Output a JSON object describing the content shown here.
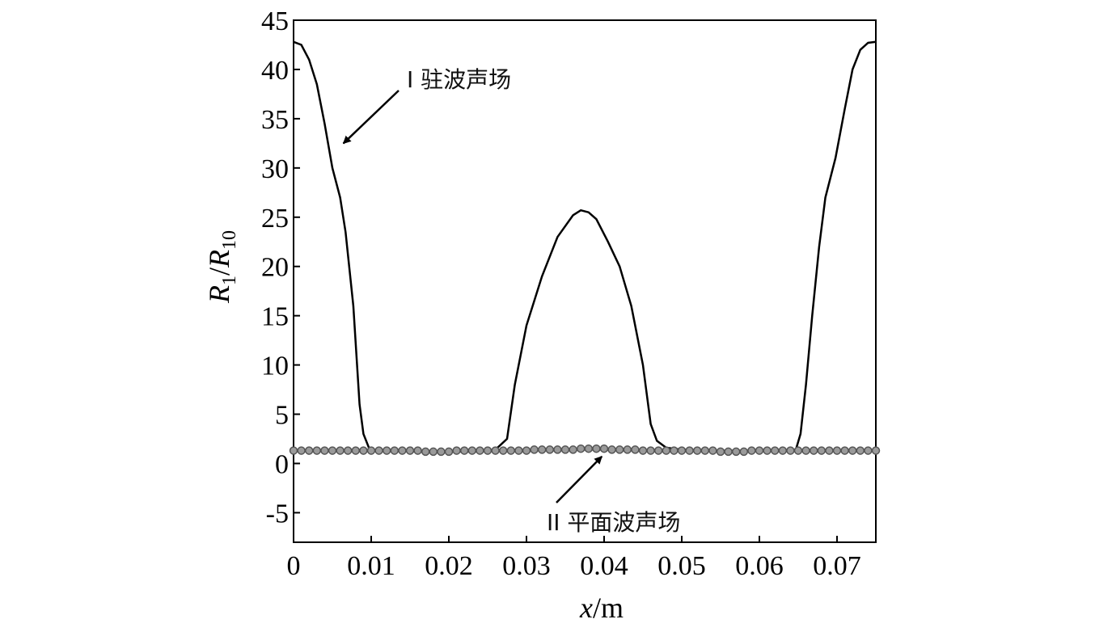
{
  "chart_data": {
    "type": "line",
    "xlabel": {
      "var": "x",
      "unit": "/m"
    },
    "ylabel": {
      "base": "R",
      "sub1": "1",
      "sep": "/",
      "base2": "R",
      "sub2": "10"
    },
    "xlim": [
      0,
      0.075
    ],
    "ylim": [
      -8,
      45
    ],
    "xticks": [
      0,
      0.01,
      0.02,
      0.03,
      0.04,
      0.05,
      0.06,
      0.07
    ],
    "xtick_labels": [
      "0",
      "0.01",
      "0.02",
      "0.03",
      "0.04",
      "0.05",
      "0.06",
      "0.07"
    ],
    "yticks": [
      -5,
      0,
      5,
      10,
      15,
      20,
      25,
      30,
      35,
      40,
      45
    ],
    "ytick_labels": [
      "-5",
      "0",
      "5",
      "10",
      "15",
      "20",
      "25",
      "30",
      "35",
      "40",
      "45"
    ],
    "grid": false,
    "colors": {
      "series1": "#000000",
      "series2": "#555555"
    },
    "series": [
      {
        "style": "solid-line",
        "x": [
          0,
          0.001,
          0.002,
          0.003,
          0.004,
          0.005,
          0.006,
          0.0067,
          0.0077,
          0.0085,
          0.009,
          0.0098,
          0.012,
          0.016,
          0.02,
          0.024,
          0.026,
          0.0275,
          0.0285,
          0.03,
          0.032,
          0.034,
          0.036,
          0.037,
          0.038,
          0.039,
          0.0405,
          0.042,
          0.0435,
          0.045,
          0.046,
          0.0468,
          0.048,
          0.05,
          0.054,
          0.058,
          0.0625,
          0.0647,
          0.0653,
          0.066,
          0.0668,
          0.0677,
          0.0685,
          0.0698,
          0.071,
          0.072,
          0.073,
          0.074,
          0.075
        ],
        "y": [
          42.8,
          42.5,
          41.0,
          38.5,
          34.5,
          30.0,
          27.0,
          23.5,
          16.0,
          6.0,
          3.0,
          1.4,
          1.3,
          1.2,
          1.2,
          1.2,
          1.4,
          2.5,
          8.0,
          14.0,
          19.0,
          23.0,
          25.2,
          25.7,
          25.5,
          24.8,
          22.5,
          20.0,
          16.0,
          10.0,
          4.0,
          2.3,
          1.6,
          1.4,
          1.3,
          1.3,
          1.3,
          1.4,
          3.0,
          8.0,
          15.0,
          22.0,
          27.0,
          31.0,
          36.0,
          40.0,
          42.0,
          42.7,
          42.8
        ]
      },
      {
        "style": "circle-markers",
        "x": [
          0,
          0.001,
          0.002,
          0.003,
          0.004,
          0.005,
          0.006,
          0.007,
          0.008,
          0.009,
          0.01,
          0.011,
          0.012,
          0.013,
          0.014,
          0.015,
          0.016,
          0.017,
          0.018,
          0.019,
          0.02,
          0.021,
          0.022,
          0.023,
          0.024,
          0.025,
          0.026,
          0.027,
          0.028,
          0.029,
          0.03,
          0.031,
          0.032,
          0.033,
          0.034,
          0.035,
          0.036,
          0.037,
          0.038,
          0.039,
          0.04,
          0.041,
          0.042,
          0.043,
          0.044,
          0.045,
          0.046,
          0.047,
          0.048,
          0.049,
          0.05,
          0.051,
          0.052,
          0.053,
          0.054,
          0.055,
          0.056,
          0.057,
          0.058,
          0.059,
          0.06,
          0.061,
          0.062,
          0.063,
          0.064,
          0.065,
          0.066,
          0.067,
          0.068,
          0.069,
          0.07,
          0.071,
          0.072,
          0.073,
          0.074,
          0.075
        ],
        "y": [
          1.3,
          1.3,
          1.3,
          1.3,
          1.3,
          1.3,
          1.3,
          1.3,
          1.3,
          1.3,
          1.3,
          1.3,
          1.3,
          1.3,
          1.3,
          1.3,
          1.3,
          1.2,
          1.2,
          1.2,
          1.2,
          1.3,
          1.3,
          1.3,
          1.3,
          1.3,
          1.3,
          1.3,
          1.3,
          1.3,
          1.3,
          1.4,
          1.4,
          1.4,
          1.4,
          1.4,
          1.4,
          1.5,
          1.5,
          1.5,
          1.5,
          1.4,
          1.4,
          1.4,
          1.4,
          1.3,
          1.3,
          1.3,
          1.3,
          1.3,
          1.3,
          1.3,
          1.3,
          1.3,
          1.3,
          1.2,
          1.2,
          1.2,
          1.2,
          1.3,
          1.3,
          1.3,
          1.3,
          1.3,
          1.3,
          1.3,
          1.3,
          1.3,
          1.3,
          1.3,
          1.3,
          1.3,
          1.3,
          1.3,
          1.3,
          1.3
        ]
      }
    ],
    "annotations": [
      {
        "text": "I 驻波声场",
        "point_to": {
          "x": 0.006,
          "y": 32.0
        }
      },
      {
        "text": "II 平面波声场",
        "point_to": {
          "x": 0.0395,
          "y": 1.2
        }
      }
    ]
  }
}
